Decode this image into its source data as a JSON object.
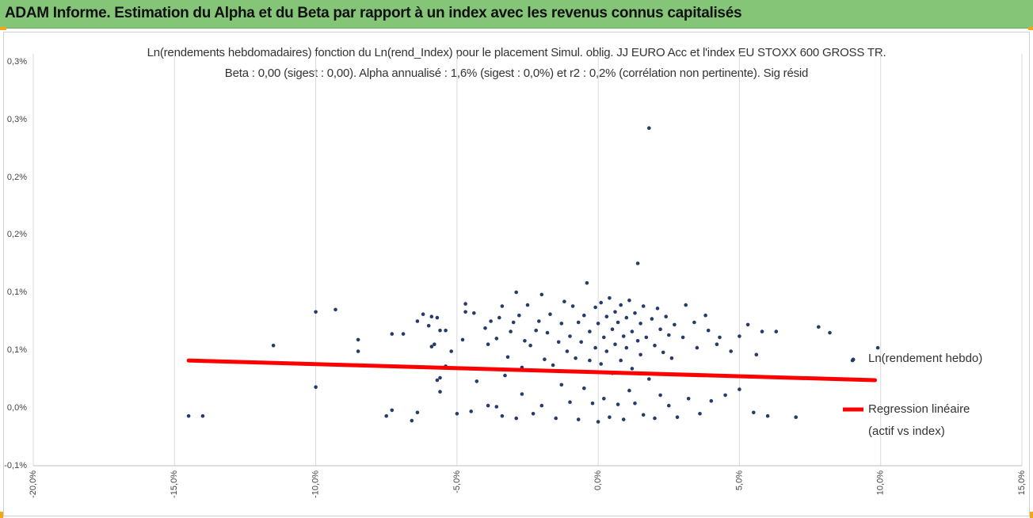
{
  "header": {
    "title": "ADAM Informe. Estimation du Alpha et du Beta par rapport à un index avec les revenus connus capitalisés"
  },
  "colors": {
    "header_bg": "#84c578",
    "accent_corner": "#f2a71b",
    "points": "#243b6b",
    "regression": "#ff0000",
    "gridline": "#d9d9d9"
  },
  "chart_data": {
    "type": "scatter",
    "title": "Ln(rendements hebdomadaires) fonction du Ln(rend_Index) pour le placement Simul. oblig. JJ EURO Acc et l'index EU STOXX 600 GROSS TR.",
    "subtitle": "Beta : 0,00 (sigest : 0,00). Alpha annualisé : 1,6% (sigest : 0,0%) et r2 : 0,2% (corrélation non pertinente). Sig résid",
    "xlabel": "",
    "ylabel": "",
    "xlim": [
      -20,
      15
    ],
    "ylim": [
      -0.1,
      0.35
    ],
    "x_ticks": [
      "-20,0%",
      "-15,0%",
      "-10,0%",
      "-5,0%",
      "0,0%",
      "5,0%",
      "10,0%",
      "15,0%"
    ],
    "x_tick_values": [
      -20,
      -15,
      -10,
      -5,
      0,
      5,
      10,
      15
    ],
    "y_ticks": [
      "-0,1%",
      "0,0%",
      "0,1%",
      "0,1%",
      "0,2%",
      "0,2%",
      "0,3%",
      "0,3%"
    ],
    "y_tick_values": [
      -0.1,
      -0.0,
      0.05,
      0.1,
      0.15,
      0.2,
      0.25,
      0.3
    ],
    "grid": "vertical",
    "legend_position": "right",
    "series": [
      {
        "name": "Ln(rendement hebdo)",
        "type": "scatter",
        "points": [
          [
            -14.5,
            -0.007
          ],
          [
            -14.0,
            -0.007
          ],
          [
            -11.5,
            0.054
          ],
          [
            -10.0,
            0.083
          ],
          [
            -10.0,
            0.018
          ],
          [
            -9.3,
            0.085
          ],
          [
            -8.5,
            0.059
          ],
          [
            -8.5,
            0.049
          ],
          [
            -7.5,
            -0.007
          ],
          [
            -7.3,
            -0.002
          ],
          [
            -7.3,
            0.064
          ],
          [
            -6.9,
            0.064
          ],
          [
            -6.6,
            -0.011
          ],
          [
            -6.4,
            -0.004
          ],
          [
            -6.4,
            0.075
          ],
          [
            -6.2,
            0.081
          ],
          [
            -6.0,
            0.071
          ],
          [
            -5.9,
            0.079
          ],
          [
            -5.9,
            0.053
          ],
          [
            -5.8,
            0.055
          ],
          [
            -5.7,
            0.078
          ],
          [
            -5.6,
            0.067
          ],
          [
            -5.7,
            0.024
          ],
          [
            -5.6,
            0.026
          ],
          [
            -5.6,
            0.014
          ],
          [
            -5.4,
            0.036
          ],
          [
            -5.4,
            0.067
          ],
          [
            -5.2,
            0.049
          ],
          [
            -5.0,
            -0.005
          ],
          [
            -4.8,
            0.059
          ],
          [
            -4.7,
            0.09
          ],
          [
            -4.7,
            0.083
          ],
          [
            -4.5,
            -0.003
          ],
          [
            -4.4,
            0.082
          ],
          [
            -4.3,
            0.023
          ],
          [
            -4.0,
            0.069
          ],
          [
            -3.9,
            0.002
          ],
          [
            -3.9,
            0.055
          ],
          [
            -3.8,
            0.075
          ],
          [
            -3.6,
            0.001
          ],
          [
            -3.6,
            0.06
          ],
          [
            -3.5,
            0.078
          ],
          [
            -3.4,
            0.088
          ],
          [
            -3.4,
            -0.007
          ],
          [
            -3.3,
            0.028
          ],
          [
            -3.2,
            0.044
          ],
          [
            -3.1,
            0.066
          ],
          [
            -3.0,
            0.074
          ],
          [
            -2.9,
            0.1
          ],
          [
            -2.9,
            -0.009
          ],
          [
            -2.8,
            0.08
          ],
          [
            -2.7,
            0.012
          ],
          [
            -2.7,
            0.035
          ],
          [
            -2.6,
            0.058
          ],
          [
            -2.5,
            0.089
          ],
          [
            -2.4,
            0.054
          ],
          [
            -2.3,
            -0.005
          ],
          [
            -2.2,
            0.067
          ],
          [
            -2.1,
            0.075
          ],
          [
            -2.0,
            0.098
          ],
          [
            -2.0,
            0.002
          ],
          [
            -1.9,
            0.042
          ],
          [
            -1.8,
            0.065
          ],
          [
            -1.7,
            0.081
          ],
          [
            -1.6,
            0.037
          ],
          [
            -1.5,
            -0.009
          ],
          [
            -1.4,
            0.057
          ],
          [
            -1.3,
            0.073
          ],
          [
            -1.3,
            0.02
          ],
          [
            -1.2,
            0.092
          ],
          [
            -1.1,
            0.049
          ],
          [
            -1.0,
            0.062
          ],
          [
            -1.0,
            0.005
          ],
          [
            -0.9,
            0.088
          ],
          [
            -0.8,
            0.043
          ],
          [
            -0.7,
            0.074
          ],
          [
            -0.7,
            -0.01
          ],
          [
            -0.6,
            0.057
          ],
          [
            -0.5,
            0.08
          ],
          [
            -0.5,
            0.017
          ],
          [
            -0.4,
            0.108
          ],
          [
            -0.3,
            0.041
          ],
          [
            -0.3,
            0.066
          ],
          [
            -0.2,
            0.004
          ],
          [
            -0.1,
            0.087
          ],
          [
            -0.1,
            0.052
          ],
          [
            0.0,
            -0.012
          ],
          [
            0.0,
            0.073
          ],
          [
            0.1,
            0.091
          ],
          [
            0.1,
            0.038
          ],
          [
            0.2,
            0.061
          ],
          [
            0.2,
            0.008
          ],
          [
            0.3,
            0.079
          ],
          [
            0.3,
            0.049
          ],
          [
            0.4,
            0.095
          ],
          [
            0.4,
            -0.008
          ],
          [
            0.5,
            0.068
          ],
          [
            0.5,
            0.03
          ],
          [
            0.6,
            0.083
          ],
          [
            0.6,
            0.055
          ],
          [
            0.7,
            0.003
          ],
          [
            0.7,
            0.074
          ],
          [
            0.8,
            0.041
          ],
          [
            0.8,
            0.089
          ],
          [
            0.9,
            0.062
          ],
          [
            0.9,
            -0.01
          ],
          [
            1.0,
            0.078
          ],
          [
            1.0,
            0.052
          ],
          [
            1.1,
            0.015
          ],
          [
            1.1,
            0.093
          ],
          [
            1.2,
            0.066
          ],
          [
            1.2,
            0.034
          ],
          [
            1.3,
            0.082
          ],
          [
            1.3,
            0.004
          ],
          [
            1.4,
            0.058
          ],
          [
            1.4,
            0.125
          ],
          [
            1.5,
            0.073
          ],
          [
            1.5,
            0.046
          ],
          [
            1.6,
            -0.006
          ],
          [
            1.6,
            0.088
          ],
          [
            1.7,
            0.061
          ],
          [
            1.8,
            0.242
          ],
          [
            1.8,
            0.025
          ],
          [
            1.9,
            0.077
          ],
          [
            2.0,
            0.054
          ],
          [
            2.0,
            -0.009
          ],
          [
            2.1,
            0.086
          ],
          [
            2.2,
            0.068
          ],
          [
            2.2,
            0.011
          ],
          [
            2.3,
            0.048
          ],
          [
            2.4,
            0.079
          ],
          [
            2.5,
            0.002
          ],
          [
            2.5,
            0.063
          ],
          [
            2.6,
            0.043
          ],
          [
            2.7,
            0.072
          ],
          [
            2.8,
            -0.008
          ],
          [
            3.0,
            0.061
          ],
          [
            3.1,
            0.089
          ],
          [
            3.2,
            0.008
          ],
          [
            3.4,
            0.074
          ],
          [
            3.5,
            0.052
          ],
          [
            3.6,
            -0.005
          ],
          [
            3.8,
            0.08
          ],
          [
            3.9,
            0.067
          ],
          [
            4.0,
            0.006
          ],
          [
            4.2,
            0.055
          ],
          [
            4.3,
            0.061
          ],
          [
            4.5,
            0.011
          ],
          [
            4.7,
            0.049
          ],
          [
            5.0,
            0.016
          ],
          [
            5.0,
            0.062
          ],
          [
            5.3,
            0.072
          ],
          [
            5.5,
            -0.004
          ],
          [
            5.6,
            0.046
          ],
          [
            5.8,
            0.066
          ],
          [
            6.0,
            -0.007
          ],
          [
            6.3,
            0.066
          ],
          [
            7.0,
            -0.008
          ],
          [
            7.8,
            0.07
          ],
          [
            8.2,
            0.065
          ],
          [
            9.0,
            0.041
          ],
          [
            9.9,
            0.052
          ]
        ]
      },
      {
        "name": "Regression linéaire (actif vs index)",
        "type": "line",
        "points": [
          [
            -14.5,
            0.041
          ],
          [
            9.8,
            0.024
          ]
        ]
      }
    ]
  },
  "legend": {
    "scatter_label": "Ln(rendement hebdo)",
    "line_label_1": "Regression linéaire",
    "line_label_2": "(actif vs index)"
  }
}
